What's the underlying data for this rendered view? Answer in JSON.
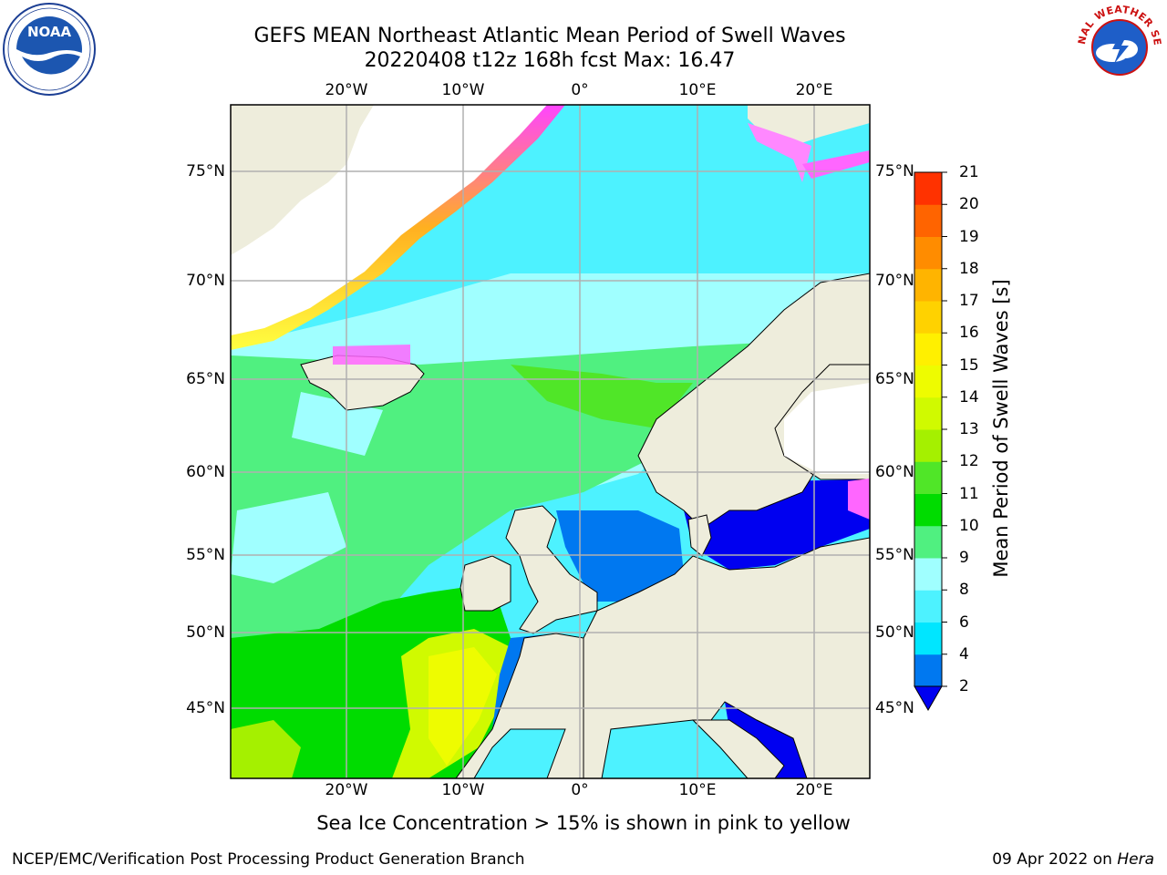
{
  "header": {
    "title": "GEFS MEAN Northeast Atlantic Mean Period of Swell Waves",
    "subtitle": "20220408 t12z 168h fcst   Max: 16.47"
  },
  "map": {
    "lon_labels": [
      "20°W",
      "10°W",
      "0°",
      "10°E",
      "20°E"
    ],
    "lon_values": [
      -20,
      -10,
      0,
      10,
      20
    ],
    "lat_labels": [
      "75°N",
      "70°N",
      "65°N",
      "60°N",
      "55°N",
      "50°N",
      "45°N"
    ],
    "lat_values": [
      75,
      70,
      65,
      60,
      55,
      50,
      45
    ],
    "land_color": "#eeeddc",
    "ice_free_color": "#ffffff"
  },
  "colorbar": {
    "title": "Mean Period of Swell Waves [s]",
    "ticks": [
      "2",
      "4",
      "6",
      "8",
      "9",
      "10",
      "11",
      "12",
      "13",
      "14",
      "15",
      "16",
      "17",
      "18",
      "19",
      "20",
      "21"
    ],
    "colors": [
      "#0078f0",
      "#00e6ff",
      "#4df2ff",
      "#a0ffff",
      "#50f080",
      "#00dc00",
      "#50e628",
      "#a5f000",
      "#d0fa00",
      "#eefc00",
      "#fff000",
      "#ffd200",
      "#ffb400",
      "#ff8c00",
      "#ff6400",
      "#ff3200",
      "#ff0000"
    ],
    "under_color": "#0000f0"
  },
  "notes": {
    "ice": "Sea Ice Concentration > 15% is shown in pink to yellow"
  },
  "footer": {
    "left": "NCEP/EMC/Verification Post Processing Product Generation Branch",
    "date": "09 Apr 2022 on ",
    "machine": "Hera"
  },
  "logos": {
    "left": "noaa-logo",
    "right": "nws-logo",
    "right_text": "NATIONAL WEATHER SERVICE"
  }
}
